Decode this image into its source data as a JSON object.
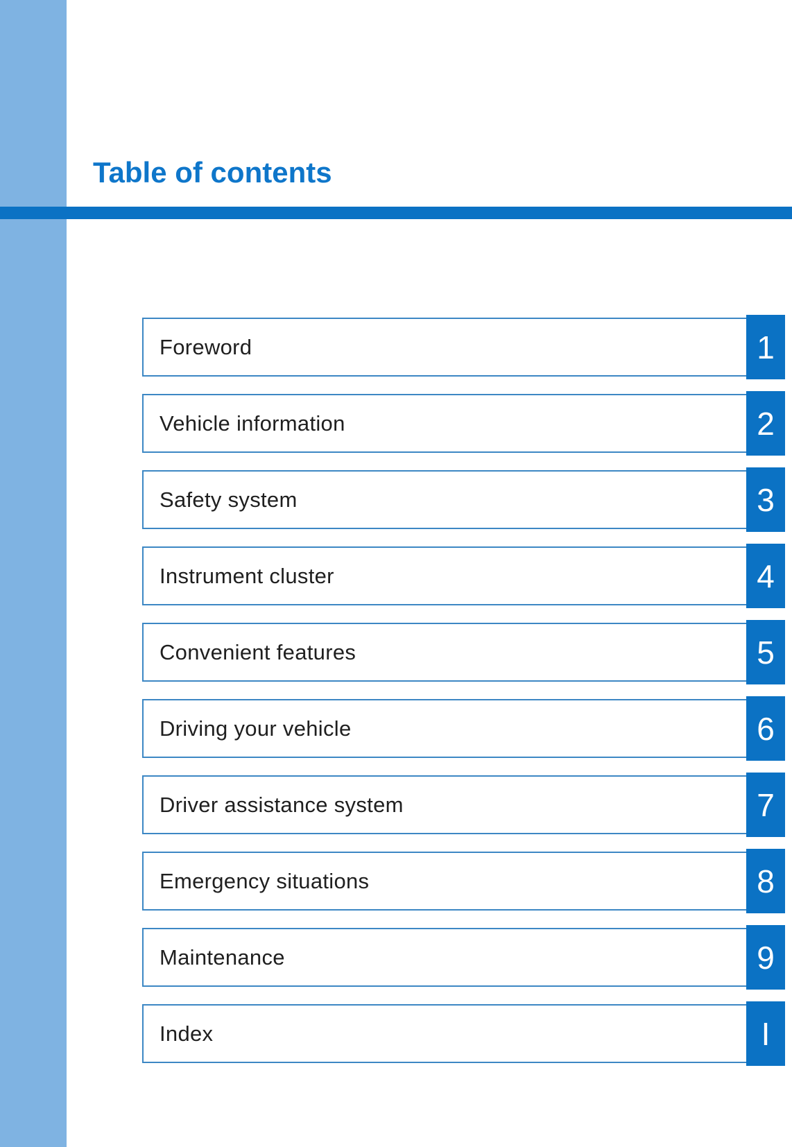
{
  "page": {
    "title": "Table of contents"
  },
  "colors": {
    "accent": "#0b72c4",
    "stripe": "#7fb3e2",
    "row_border": "#3c87c4",
    "row_text": "#1f1f1f",
    "number_text": "#ffffff",
    "title_color": "#0e76ca"
  },
  "toc": {
    "rows": [
      {
        "label": "Foreword",
        "number": "1"
      },
      {
        "label": "Vehicle information",
        "number": "2"
      },
      {
        "label": "Safety system",
        "number": "3"
      },
      {
        "label": "Instrument cluster",
        "number": "4"
      },
      {
        "label": "Convenient features",
        "number": "5"
      },
      {
        "label": "Driving your vehicle",
        "number": "6"
      },
      {
        "label": "Driver assistance system",
        "number": "7"
      },
      {
        "label": "Emergency situations",
        "number": "8"
      },
      {
        "label": "Maintenance",
        "number": "9"
      },
      {
        "label": "Index",
        "number": "I"
      }
    ]
  }
}
